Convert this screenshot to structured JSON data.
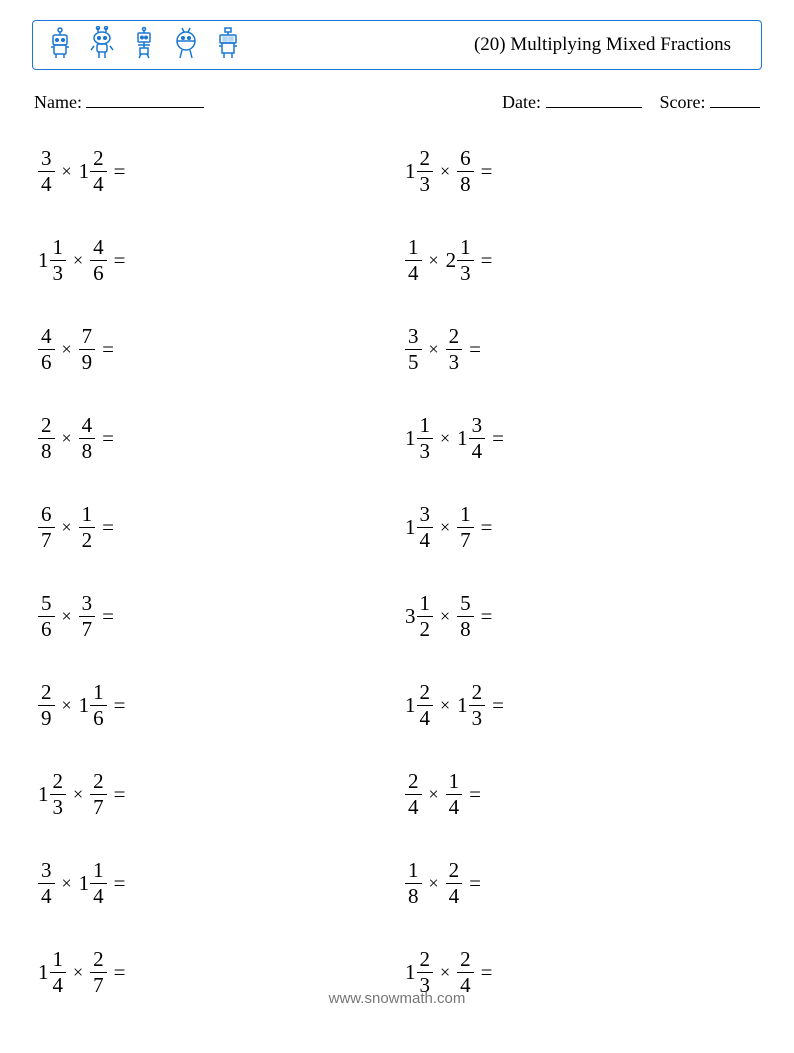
{
  "header": {
    "title": "(20) Multiplying Mixed Fractions",
    "border_color": "#1976d2",
    "icon_color": "#1976d2"
  },
  "meta": {
    "name_label": "Name:",
    "name_blank_width": 118,
    "date_label": "Date:",
    "date_blank_width": 96,
    "score_label": "Score:",
    "score_blank_width": 50
  },
  "layout": {
    "columns": 2,
    "row_gap": 41,
    "problem_fontsize": 21
  },
  "colors": {
    "background": "#ffffff",
    "text": "#000000",
    "footer": "#777777"
  },
  "problems": [
    {
      "a": {
        "w": null,
        "n": 3,
        "d": 4
      },
      "b": {
        "w": 1,
        "n": 2,
        "d": 4
      }
    },
    {
      "a": {
        "w": 1,
        "n": 2,
        "d": 3
      },
      "b": {
        "w": null,
        "n": 6,
        "d": 8
      }
    },
    {
      "a": {
        "w": 1,
        "n": 1,
        "d": 3
      },
      "b": {
        "w": null,
        "n": 4,
        "d": 6
      }
    },
    {
      "a": {
        "w": null,
        "n": 1,
        "d": 4
      },
      "b": {
        "w": 2,
        "n": 1,
        "d": 3
      }
    },
    {
      "a": {
        "w": null,
        "n": 4,
        "d": 6
      },
      "b": {
        "w": null,
        "n": 7,
        "d": 9
      }
    },
    {
      "a": {
        "w": null,
        "n": 3,
        "d": 5
      },
      "b": {
        "w": null,
        "n": 2,
        "d": 3
      }
    },
    {
      "a": {
        "w": null,
        "n": 2,
        "d": 8
      },
      "b": {
        "w": null,
        "n": 4,
        "d": 8
      }
    },
    {
      "a": {
        "w": 1,
        "n": 1,
        "d": 3
      },
      "b": {
        "w": 1,
        "n": 3,
        "d": 4
      }
    },
    {
      "a": {
        "w": null,
        "n": 6,
        "d": 7
      },
      "b": {
        "w": null,
        "n": 1,
        "d": 2
      }
    },
    {
      "a": {
        "w": 1,
        "n": 3,
        "d": 4
      },
      "b": {
        "w": null,
        "n": 1,
        "d": 7
      }
    },
    {
      "a": {
        "w": null,
        "n": 5,
        "d": 6
      },
      "b": {
        "w": null,
        "n": 3,
        "d": 7
      }
    },
    {
      "a": {
        "w": 3,
        "n": 1,
        "d": 2
      },
      "b": {
        "w": null,
        "n": 5,
        "d": 8
      }
    },
    {
      "a": {
        "w": null,
        "n": 2,
        "d": 9
      },
      "b": {
        "w": 1,
        "n": 1,
        "d": 6
      }
    },
    {
      "a": {
        "w": 1,
        "n": 2,
        "d": 4
      },
      "b": {
        "w": 1,
        "n": 2,
        "d": 3
      }
    },
    {
      "a": {
        "w": 1,
        "n": 2,
        "d": 3
      },
      "b": {
        "w": null,
        "n": 2,
        "d": 7
      }
    },
    {
      "a": {
        "w": null,
        "n": 2,
        "d": 4
      },
      "b": {
        "w": null,
        "n": 1,
        "d": 4
      }
    },
    {
      "a": {
        "w": null,
        "n": 3,
        "d": 4
      },
      "b": {
        "w": 1,
        "n": 1,
        "d": 4
      }
    },
    {
      "a": {
        "w": null,
        "n": 1,
        "d": 8
      },
      "b": {
        "w": null,
        "n": 2,
        "d": 4
      }
    },
    {
      "a": {
        "w": 1,
        "n": 1,
        "d": 4
      },
      "b": {
        "w": null,
        "n": 2,
        "d": 7
      }
    },
    {
      "a": {
        "w": 1,
        "n": 2,
        "d": 3
      },
      "b": {
        "w": null,
        "n": 2,
        "d": 4
      }
    }
  ],
  "symbols": {
    "times": "×",
    "equals": "="
  },
  "footer": "www.snowmath.com"
}
